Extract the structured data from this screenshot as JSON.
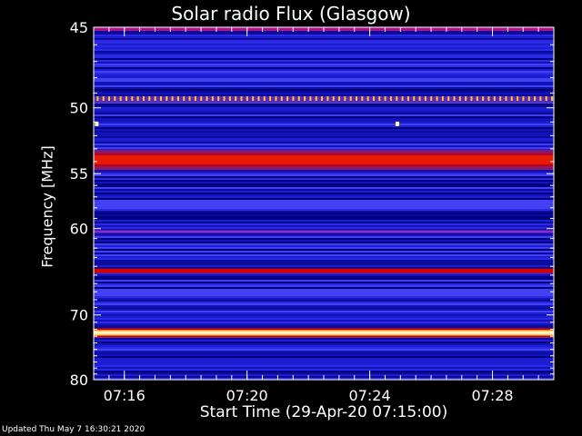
{
  "chart_data": {
    "type": "heatmap",
    "title": "Solar radio Flux (Glasgow)",
    "xlabel": "Start Time (29-Apr-20 07:15:00)",
    "ylabel": "Frequency [MHz]",
    "footer": "Updated Thu May  7 16:30:21 2020",
    "x_range_minutes": [
      0,
      15
    ],
    "x_ticks": [
      {
        "label": "07:16",
        "minute": 1
      },
      {
        "label": "07:20",
        "minute": 5
      },
      {
        "label": "07:24",
        "minute": 9
      },
      {
        "label": "07:28",
        "minute": 13
      }
    ],
    "y_range_mhz": [
      45,
      80
    ],
    "y_axis_scale": "reciprocal",
    "y_ticks": [
      45,
      50,
      55,
      60,
      70,
      80
    ],
    "colormap": [
      "#00008b",
      "#1a1adc",
      "#3c3cff",
      "#7a1fb0",
      "#d10000",
      "#ff4000",
      "#ffd000",
      "#ffffff"
    ],
    "bands": [
      {
        "freq_mhz": 45.2,
        "intensity": "high"
      },
      {
        "freq_mhz": 49.4,
        "intensity": "very-high",
        "pattern": "periodic-spikes"
      },
      {
        "freq_mhz": 53.8,
        "intensity": "high"
      },
      {
        "freq_mhz": 60.3,
        "intensity": "medium"
      },
      {
        "freq_mhz": 64.5,
        "intensity": "high"
      },
      {
        "freq_mhz": 72.5,
        "intensity": "very-high"
      }
    ],
    "features": [
      {
        "type": "burst-point",
        "freq_mhz": 51.1,
        "minute": 0.1
      },
      {
        "type": "burst-point",
        "freq_mhz": 51.1,
        "minute": 9.9
      }
    ]
  }
}
